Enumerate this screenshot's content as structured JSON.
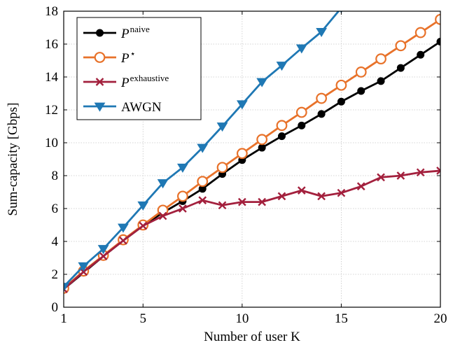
{
  "chart_data": {
    "type": "line",
    "xlabel": "Number of user K",
    "ylabel": "Sum-capacity [Gbps]",
    "xlim": [
      1,
      20
    ],
    "ylim": [
      0,
      18
    ],
    "xticks": [
      1,
      5,
      10,
      15,
      20
    ],
    "yticks": [
      0,
      2,
      4,
      6,
      8,
      10,
      12,
      14,
      16,
      18
    ],
    "grid": true,
    "legend_position": "top-left",
    "x": [
      1,
      2,
      3,
      4,
      5,
      6,
      7,
      8,
      9,
      10,
      11,
      12,
      13,
      14,
      15,
      16,
      17,
      18,
      19,
      20
    ],
    "series": [
      {
        "name_main": "P",
        "name_sup": "naive",
        "name_style": "superscript",
        "color": "#000000",
        "marker": "circle-filled",
        "values": [
          1.1,
          2.1,
          3.1,
          4.05,
          4.95,
          5.75,
          6.45,
          7.2,
          8.1,
          8.95,
          9.7,
          10.4,
          11.05,
          11.75,
          12.5,
          13.15,
          13.75,
          14.55,
          15.35,
          16.15
        ]
      },
      {
        "name_main": "P",
        "name_sup": "⋆",
        "name_style": "superscript",
        "color": "#e8722a",
        "marker": "circle-open",
        "values": [
          1.15,
          2.2,
          3.15,
          4.1,
          5.0,
          5.9,
          6.75,
          7.65,
          8.5,
          9.35,
          10.2,
          11.05,
          11.85,
          12.7,
          13.5,
          14.3,
          15.1,
          15.9,
          16.7,
          17.5
        ]
      },
      {
        "name_main": "P",
        "name_sup": "exhaustive",
        "name_style": "superscript",
        "color": "#a3203d",
        "marker": "x",
        "values": [
          1.1,
          2.15,
          3.1,
          4.05,
          4.95,
          5.55,
          6.0,
          6.5,
          6.2,
          6.4,
          6.4,
          6.75,
          7.1,
          6.75,
          6.95,
          7.35,
          7.9,
          8.0,
          8.2,
          8.3
        ]
      },
      {
        "name_main": "AWGN",
        "name_sup": "",
        "name_style": "plain",
        "color": "#1f78b4",
        "marker": "triangle-down",
        "values": [
          1.25,
          2.5,
          3.55,
          4.85,
          6.2,
          7.55,
          8.5,
          9.7,
          11.0,
          12.35,
          13.7,
          14.7,
          15.75,
          16.75,
          18.2,
          null,
          null,
          null,
          null,
          null
        ]
      }
    ]
  }
}
